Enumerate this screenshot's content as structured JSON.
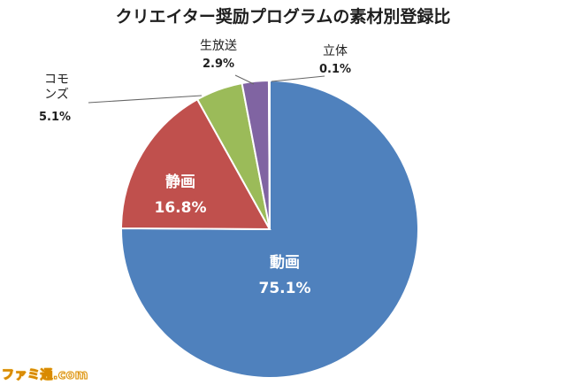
{
  "chart_data": {
    "type": "pie",
    "title": "クリエイター奨励プログラムの素材別登録比",
    "start": "top-clockwise",
    "slices": [
      {
        "label": "動画",
        "value": 75.1,
        "value_text": "75.1%",
        "color": "#4f81bd",
        "label_position": "inside",
        "label_color": "#ffffff"
      },
      {
        "label": "静画",
        "value": 16.8,
        "value_text": "16.8%",
        "color": "#c0504d",
        "label_position": "inside",
        "label_color": "#ffffff"
      },
      {
        "label": "コモンズ",
        "label_lines": [
          "コモ",
          "ンズ"
        ],
        "value": 5.1,
        "value_text": "5.1%",
        "color": "#9bbb59",
        "label_position": "outside",
        "label_color": "#1f1f1f"
      },
      {
        "label": "生放送",
        "value": 2.9,
        "value_text": "2.9%",
        "color": "#8064a2",
        "label_position": "outside",
        "label_color": "#1f1f1f"
      },
      {
        "label": "立体",
        "value": 0.1,
        "value_text": "0.1%",
        "color": "#4bacc6",
        "label_position": "outside",
        "label_color": "#1f1f1f"
      }
    ]
  },
  "watermark": "ファミ通.com"
}
